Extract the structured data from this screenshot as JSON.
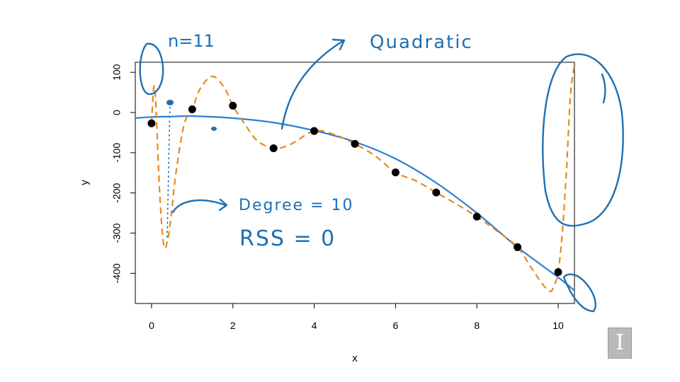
{
  "chart_data": {
    "type": "scatter",
    "xlabel": "x",
    "ylabel": "y",
    "xlim": [
      -0.4,
      10.4
    ],
    "ylim": [
      -475,
      125
    ],
    "x_ticks": [
      "0",
      "2",
      "4",
      "6",
      "8",
      "10"
    ],
    "y_ticks": [
      "100",
      "0",
      "-100",
      "-200",
      "-300",
      "-400"
    ],
    "grid": false,
    "points": {
      "x": [
        0,
        1,
        2,
        3,
        4,
        5,
        6,
        7,
        8,
        9,
        10
      ],
      "y": [
        -27,
        8,
        17,
        -89,
        -46,
        -78,
        -149,
        -199,
        -259,
        -335,
        -397
      ]
    },
    "series": [
      {
        "name": "Quadratic",
        "style": "solid",
        "color": "#2a7fd4",
        "x": [
          -0.4,
          0,
          0.5,
          1,
          2,
          3,
          4,
          5,
          6,
          7,
          8,
          9,
          10,
          10.4
        ],
        "y": [
          -14,
          -11,
          -10,
          -9,
          -14,
          -25,
          -45,
          -73,
          -115,
          -175,
          -250,
          -335,
          -410,
          -443
        ]
      },
      {
        "name": "Degree = 10",
        "style": "dashed",
        "color": "#e8891c",
        "x": [
          0,
          0.05,
          0.1,
          0.2,
          0.3,
          0.4,
          0.5,
          0.6,
          0.8,
          1,
          1.2,
          1.5,
          1.8,
          2,
          2.3,
          2.6,
          3,
          3.4,
          4,
          4.5,
          5,
          5.5,
          6,
          6.5,
          7,
          7.5,
          8,
          8.5,
          9,
          9.3,
          9.6,
          9.8,
          9.9,
          10,
          10.1,
          10.2,
          10.3,
          10.4
        ],
        "y": [
          -27,
          60,
          30,
          -200,
          -330,
          -315,
          -240,
          -150,
          -30,
          8,
          60,
          90,
          60,
          17,
          -30,
          -70,
          -89,
          -80,
          -46,
          -55,
          -78,
          -108,
          -149,
          -170,
          -199,
          -228,
          -259,
          -295,
          -335,
          -380,
          -425,
          -445,
          -430,
          -397,
          -300,
          -150,
          40,
          120
        ]
      }
    ],
    "annotations": {
      "n_label": "n=11",
      "quadratic_label": "Quadratic",
      "degree_label": "Degree = 10",
      "rss_label": "RSS = 0"
    }
  },
  "colors": {
    "ink": "#1f6fb2",
    "quadratic_line": "#2a7fd4",
    "dashed_line": "#e8891c",
    "points": "#000000"
  },
  "logo": {
    "glyph": "I"
  }
}
